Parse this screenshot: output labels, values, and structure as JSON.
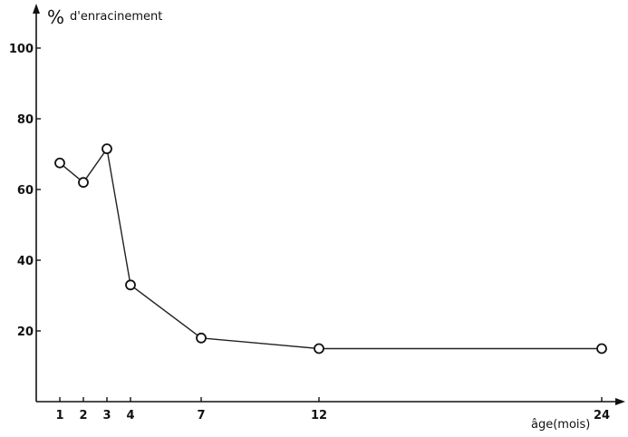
{
  "chart_data": {
    "type": "line",
    "title": "",
    "ylabel_symbol": "%",
    "ylabel_text": "d'enracinement",
    "xlabel": "âge(mois)",
    "x": [
      1,
      2,
      3,
      4,
      7,
      12,
      24
    ],
    "series": [
      {
        "values": [
          67.5,
          62,
          71.5,
          33,
          18,
          15,
          15
        ]
      }
    ],
    "x_ticks": [
      1,
      2,
      3,
      4,
      7,
      12,
      24
    ],
    "y_ticks": [
      20,
      40,
      60,
      80,
      100
    ],
    "xlim": [
      0,
      24.9
    ],
    "ylim": [
      0,
      105
    ],
    "grid": false,
    "legend": "none",
    "colors": {
      "line": "#222222",
      "marker_stroke": "#111111",
      "marker_fill": "#ffffff"
    }
  }
}
